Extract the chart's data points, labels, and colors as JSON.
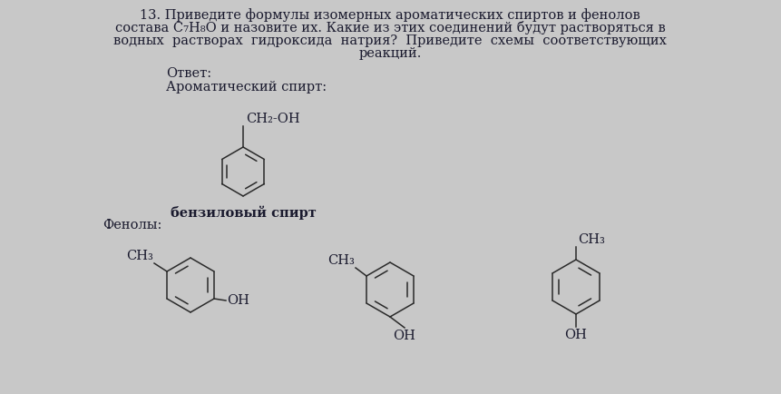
{
  "bg_color": "#c8c8c8",
  "page_bg": "#ffffff",
  "text_color": "#1a1a2e",
  "answer_label": "Ответ:",
  "aromatic_label": "Ароматический спирт:",
  "benzyl_label": "бензиловый спирт",
  "phenols_label": "Фенолы:",
  "title_lines": [
    "13. Приведите формулы изомерных ароматических спиртов и фенолов",
    "состава С₇H₈O и назовите их. Какие из этих соединений будут растворяться в",
    "водных  растворах  гидроксида  натрия?  Приведите  схемы  соответствующих",
    "реакций."
  ],
  "font_size": 10.5
}
